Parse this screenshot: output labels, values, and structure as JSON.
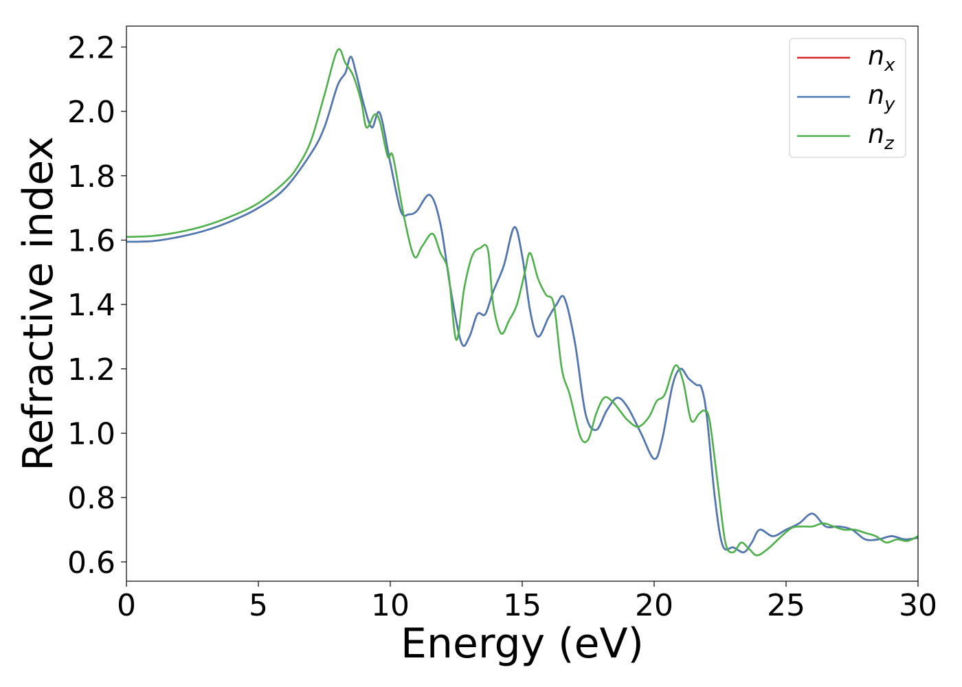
{
  "chart_data": {
    "type": "line",
    "title": "",
    "xlabel": "Energy (eV)",
    "ylabel": "Refractive index",
    "xlim": [
      0,
      30
    ],
    "ylim": [
      0.54,
      2.265
    ],
    "xticks": [
      0,
      5,
      10,
      15,
      20,
      25,
      30
    ],
    "yticks": [
      0.6,
      0.8,
      1.0,
      1.2,
      1.4,
      1.6,
      1.8,
      2.0,
      2.2
    ],
    "yticklabels": [
      "0.6",
      "0.8",
      "1.0",
      "1.2",
      "1.4",
      "1.6",
      "1.8",
      "2.0",
      "2.2"
    ],
    "grid": false,
    "legend_position": "top-right",
    "series": [
      {
        "name": "n_x",
        "base": "n",
        "sub": "x",
        "color": "#d62728",
        "x": [
          0,
          1,
          2,
          3,
          4,
          5,
          6,
          7,
          7.5,
          8,
          8.3,
          8.5,
          8.7,
          9,
          9.3,
          9.6,
          10,
          10.4,
          10.7,
          11,
          11.5,
          11.9,
          12.3,
          12.7,
          13,
          13.3,
          13.6,
          13.9,
          14.3,
          14.7,
          15,
          15.3,
          15.6,
          16,
          16.3,
          16.6,
          17,
          17.4,
          17.8,
          18.2,
          18.6,
          19,
          19.5,
          20,
          20.3,
          20.7,
          21,
          21.3,
          21.6,
          21.8,
          22,
          22.3,
          22.6,
          23,
          23.4,
          23.7,
          24,
          24.5,
          25,
          25.5,
          26,
          26.5,
          27,
          27.5,
          28,
          28.5,
          29,
          29.5,
          30
        ],
        "y": [
          1.595,
          1.597,
          1.61,
          1.63,
          1.66,
          1.7,
          1.76,
          1.87,
          1.95,
          2.08,
          2.12,
          2.17,
          2.12,
          2.02,
          1.95,
          1.995,
          1.84,
          1.69,
          1.68,
          1.69,
          1.74,
          1.65,
          1.44,
          1.28,
          1.3,
          1.37,
          1.37,
          1.44,
          1.52,
          1.64,
          1.55,
          1.38,
          1.3,
          1.36,
          1.4,
          1.42,
          1.28,
          1.06,
          1.01,
          1.07,
          1.11,
          1.08,
          1.0,
          0.92,
          0.98,
          1.15,
          1.2,
          1.17,
          1.15,
          1.14,
          1.05,
          0.8,
          0.65,
          0.645,
          0.63,
          0.66,
          0.7,
          0.68,
          0.7,
          0.72,
          0.75,
          0.71,
          0.71,
          0.7,
          0.67,
          0.67,
          0.68,
          0.67,
          0.675
        ]
      },
      {
        "name": "n_y",
        "base": "n",
        "sub": "y",
        "color": "#4a78b4",
        "x": [
          0,
          1,
          2,
          3,
          4,
          5,
          6,
          7,
          7.5,
          8,
          8.3,
          8.5,
          8.7,
          9,
          9.3,
          9.6,
          10,
          10.4,
          10.7,
          11,
          11.5,
          11.9,
          12.3,
          12.7,
          13,
          13.3,
          13.6,
          13.9,
          14.3,
          14.7,
          15,
          15.3,
          15.6,
          16,
          16.3,
          16.6,
          17,
          17.4,
          17.8,
          18.2,
          18.6,
          19,
          19.5,
          20,
          20.3,
          20.7,
          21,
          21.3,
          21.6,
          21.8,
          22,
          22.3,
          22.6,
          23,
          23.4,
          23.7,
          24,
          24.5,
          25,
          25.5,
          26,
          26.5,
          27,
          27.5,
          28,
          28.5,
          29,
          29.5,
          30
        ],
        "y": [
          1.595,
          1.597,
          1.61,
          1.63,
          1.66,
          1.7,
          1.76,
          1.87,
          1.95,
          2.08,
          2.12,
          2.17,
          2.12,
          2.02,
          1.95,
          1.995,
          1.84,
          1.69,
          1.68,
          1.69,
          1.74,
          1.65,
          1.44,
          1.28,
          1.3,
          1.37,
          1.37,
          1.44,
          1.52,
          1.64,
          1.55,
          1.38,
          1.3,
          1.36,
          1.4,
          1.42,
          1.28,
          1.06,
          1.01,
          1.07,
          1.11,
          1.08,
          1.0,
          0.92,
          0.98,
          1.15,
          1.2,
          1.17,
          1.15,
          1.14,
          1.05,
          0.8,
          0.65,
          0.645,
          0.63,
          0.66,
          0.7,
          0.68,
          0.7,
          0.72,
          0.75,
          0.71,
          0.71,
          0.7,
          0.67,
          0.67,
          0.68,
          0.67,
          0.675
        ]
      },
      {
        "name": "n_z",
        "base": "n",
        "sub": "z",
        "color": "#4daf4a",
        "x": [
          0,
          1,
          2,
          3,
          4,
          5,
          6,
          6.5,
          7,
          7.5,
          8,
          8.3,
          8.6,
          8.9,
          9.1,
          9.4,
          9.6,
          9.9,
          10.1,
          10.5,
          10.9,
          11.2,
          11.6,
          11.9,
          12.2,
          12.5,
          12.8,
          13.1,
          13.4,
          13.7,
          13.9,
          14.2,
          14.5,
          14.8,
          15.1,
          15.3,
          15.6,
          15.9,
          16.2,
          16.5,
          16.8,
          17.2,
          17.5,
          17.8,
          18.1,
          18.4,
          18.7,
          19,
          19.4,
          19.8,
          20.1,
          20.4,
          20.8,
          21.1,
          21.4,
          21.7,
          21.9,
          22.1,
          22.4,
          22.7,
          23,
          23.3,
          23.6,
          23.9,
          24.3,
          24.7,
          25.2,
          25.6,
          26,
          26.4,
          26.8,
          27.2,
          27.6,
          28,
          28.4,
          28.8,
          29.2,
          29.6,
          30
        ],
        "y": [
          1.61,
          1.613,
          1.625,
          1.645,
          1.675,
          1.715,
          1.78,
          1.83,
          1.91,
          2.05,
          2.19,
          2.15,
          2.11,
          2.03,
          1.95,
          1.99,
          1.97,
          1.86,
          1.86,
          1.68,
          1.55,
          1.58,
          1.62,
          1.56,
          1.5,
          1.29,
          1.45,
          1.55,
          1.575,
          1.57,
          1.4,
          1.31,
          1.35,
          1.4,
          1.5,
          1.56,
          1.48,
          1.43,
          1.4,
          1.2,
          1.12,
          0.99,
          0.98,
          1.06,
          1.11,
          1.1,
          1.07,
          1.04,
          1.02,
          1.05,
          1.1,
          1.12,
          1.21,
          1.16,
          1.04,
          1.06,
          1.07,
          1.04,
          0.85,
          0.66,
          0.63,
          0.66,
          0.64,
          0.62,
          0.64,
          0.67,
          0.705,
          0.71,
          0.71,
          0.72,
          0.71,
          0.7,
          0.7,
          0.69,
          0.68,
          0.66,
          0.67,
          0.665,
          0.68
        ]
      }
    ]
  }
}
